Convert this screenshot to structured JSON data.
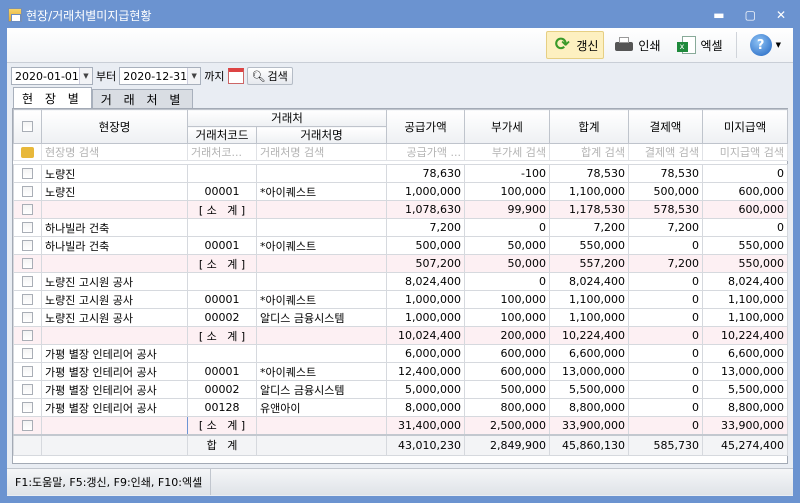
{
  "window": {
    "title": "현장/거래처별미지급현황",
    "controls": [
      "minimize",
      "maximize",
      "close"
    ]
  },
  "toolbar": {
    "refresh": "갱신",
    "print": "인쇄",
    "excel": "엑셀"
  },
  "filter": {
    "from": "2020-01-01",
    "from_label": "부터",
    "to": "2020-12-31",
    "to_label": "까지",
    "search": "검색"
  },
  "tabs": [
    "현 장 별",
    "거 래 처 별"
  ],
  "grid": {
    "headers": {
      "site": "현장명",
      "vendor_group": "거래처",
      "vendor_code": "거래처코드",
      "vendor_name": "거래처명",
      "supply": "공급가액",
      "vat": "부가세",
      "total": "합계",
      "paid": "결제액",
      "unpaid": "미지급액"
    },
    "filters": {
      "site": "현장명 검색",
      "vendor_code": "거래처코...",
      "vendor_name": "거래처명 검색",
      "supply": "공급가액 ...",
      "vat": "부가세 검색",
      "total": "합계 검색",
      "paid": "결제액 검색",
      "unpaid": "미지급액 검색"
    },
    "rows": [
      {
        "site": "노량진",
        "code": "",
        "name": "",
        "supply": "78,630",
        "vat": "-100",
        "total": "78,530",
        "paid": "78,530",
        "unpaid": "0",
        "type": "normal"
      },
      {
        "site": "노량진",
        "code": "00001",
        "name": "*아이퀘스트",
        "supply": "1,000,000",
        "vat": "100,000",
        "total": "1,100,000",
        "paid": "500,000",
        "unpaid": "600,000",
        "type": "normal"
      },
      {
        "site": "",
        "code": "[ 소   계 ]",
        "name": "",
        "supply": "1,078,630",
        "vat": "99,900",
        "total": "1,178,530",
        "paid": "578,530",
        "unpaid": "600,000",
        "type": "sub"
      },
      {
        "site": "하나빌라 건축",
        "code": "",
        "name": "",
        "supply": "7,200",
        "vat": "0",
        "total": "7,200",
        "paid": "7,200",
        "unpaid": "0",
        "type": "normal"
      },
      {
        "site": "하나빌라 건축",
        "code": "00001",
        "name": "*아이퀘스트",
        "supply": "500,000",
        "vat": "50,000",
        "total": "550,000",
        "paid": "0",
        "unpaid": "550,000",
        "type": "normal"
      },
      {
        "site": "",
        "code": "[ 소   계 ]",
        "name": "",
        "supply": "507,200",
        "vat": "50,000",
        "total": "557,200",
        "paid": "7,200",
        "unpaid": "550,000",
        "type": "sub"
      },
      {
        "site": "노량진 고시원 공사",
        "code": "",
        "name": "",
        "supply": "8,024,400",
        "vat": "0",
        "total": "8,024,400",
        "paid": "0",
        "unpaid": "8,024,400",
        "type": "normal"
      },
      {
        "site": "노량진 고시원 공사",
        "code": "00001",
        "name": "*아이퀘스트",
        "supply": "1,000,000",
        "vat": "100,000",
        "total": "1,100,000",
        "paid": "0",
        "unpaid": "1,100,000",
        "type": "normal"
      },
      {
        "site": "노량진 고시원 공사",
        "code": "00002",
        "name": "알디스 금융시스템",
        "supply": "1,000,000",
        "vat": "100,000",
        "total": "1,100,000",
        "paid": "0",
        "unpaid": "1,100,000",
        "type": "normal"
      },
      {
        "site": "",
        "code": "[ 소   계 ]",
        "name": "",
        "supply": "10,024,400",
        "vat": "200,000",
        "total": "10,224,400",
        "paid": "0",
        "unpaid": "10,224,400",
        "type": "sub"
      },
      {
        "site": "가평 별장 인테리어 공사",
        "code": "",
        "name": "",
        "supply": "6,000,000",
        "vat": "600,000",
        "total": "6,600,000",
        "paid": "0",
        "unpaid": "6,600,000",
        "type": "normal"
      },
      {
        "site": "가평 별장 인테리어 공사",
        "code": "00001",
        "name": "*아이퀘스트",
        "supply": "12,400,000",
        "vat": "600,000",
        "total": "13,000,000",
        "paid": "0",
        "unpaid": "13,000,000",
        "type": "normal"
      },
      {
        "site": "가평 별장 인테리어 공사",
        "code": "00002",
        "name": "알디스 금융시스템",
        "supply": "5,000,000",
        "vat": "500,000",
        "total": "5,500,000",
        "paid": "0",
        "unpaid": "5,500,000",
        "type": "normal"
      },
      {
        "site": "가평 별장 인테리어 공사",
        "code": "00128",
        "name": "유앤아이",
        "supply": "8,000,000",
        "vat": "800,000",
        "total": "8,800,000",
        "paid": "0",
        "unpaid": "8,800,000",
        "type": "normal"
      },
      {
        "site": "",
        "code": "[ 소   계 ]",
        "name": "",
        "supply": "31,400,000",
        "vat": "2,500,000",
        "total": "33,900,000",
        "paid": "0",
        "unpaid": "33,900,000",
        "type": "sub"
      }
    ],
    "totals": {
      "label": "합   계",
      "supply": "43,010,230",
      "vat": "2,849,900",
      "total": "45,860,130",
      "paid": "585,730",
      "unpaid": "45,274,400"
    }
  },
  "status": {
    "shortcuts": "F1:도움말, F5:갱신, F9:인쇄, F10:엑셀"
  }
}
